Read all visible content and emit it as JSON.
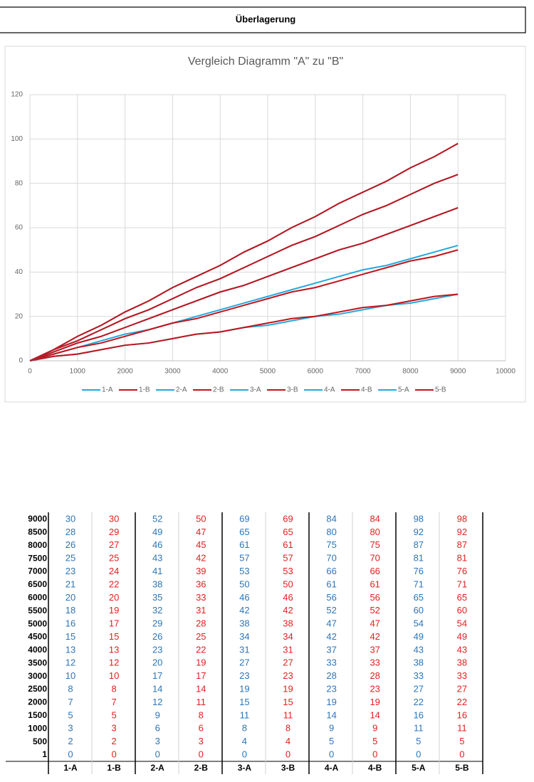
{
  "header": {
    "title": "Überlagerung"
  },
  "chart_data": {
    "type": "line",
    "title": "Vergleich Diagramm \"A\" zu \"B\"",
    "x": [
      1,
      500,
      1000,
      1500,
      2000,
      2500,
      3000,
      3500,
      4000,
      4500,
      5000,
      5500,
      6000,
      6500,
      7000,
      7500,
      8000,
      8500,
      9000
    ],
    "series": [
      {
        "name": "1-A",
        "color": "#25a9dd",
        "values": [
          0,
          2,
          3,
          5,
          7,
          8,
          10,
          12,
          13,
          15,
          16,
          18,
          20,
          21,
          23,
          25,
          26,
          28,
          30
        ]
      },
      {
        "name": "1-B",
        "color": "#c0141c",
        "values": [
          0,
          2,
          3,
          5,
          7,
          8,
          10,
          12,
          13,
          15,
          17,
          19,
          20,
          22,
          24,
          25,
          27,
          29,
          30
        ]
      },
      {
        "name": "2-A",
        "color": "#25a9dd",
        "values": [
          0,
          3,
          6,
          9,
          12,
          14,
          17,
          20,
          23,
          26,
          29,
          32,
          35,
          38,
          41,
          43,
          46,
          49,
          52
        ]
      },
      {
        "name": "2-B",
        "color": "#c0141c",
        "values": [
          0,
          3,
          6,
          8,
          11,
          14,
          17,
          19,
          22,
          25,
          28,
          31,
          33,
          36,
          39,
          42,
          45,
          47,
          50
        ]
      },
      {
        "name": "3-A",
        "color": "#25a9dd",
        "values": [
          0,
          4,
          8,
          11,
          15,
          19,
          23,
          27,
          31,
          34,
          38,
          42,
          46,
          50,
          53,
          57,
          61,
          65,
          69
        ]
      },
      {
        "name": "3-B",
        "color": "#c0141c",
        "values": [
          0,
          4,
          8,
          11,
          15,
          19,
          23,
          27,
          31,
          34,
          38,
          42,
          46,
          50,
          53,
          57,
          61,
          65,
          69
        ]
      },
      {
        "name": "4-A",
        "color": "#25a9dd",
        "values": [
          0,
          5,
          9,
          14,
          19,
          23,
          28,
          33,
          37,
          42,
          47,
          52,
          56,
          61,
          66,
          70,
          75,
          80,
          84
        ]
      },
      {
        "name": "4-B",
        "color": "#c0141c",
        "values": [
          0,
          5,
          9,
          14,
          19,
          23,
          28,
          33,
          37,
          42,
          47,
          52,
          56,
          61,
          66,
          70,
          75,
          80,
          84
        ]
      },
      {
        "name": "5-A",
        "color": "#25a9dd",
        "values": [
          0,
          5,
          11,
          16,
          22,
          27,
          33,
          38,
          43,
          49,
          54,
          60,
          65,
          71,
          76,
          81,
          87,
          92,
          98
        ]
      },
      {
        "name": "5-B",
        "color": "#c0141c",
        "values": [
          0,
          5,
          11,
          16,
          22,
          27,
          33,
          38,
          43,
          49,
          54,
          60,
          65,
          71,
          76,
          81,
          87,
          92,
          98
        ]
      }
    ],
    "xlim": [
      0,
      10000
    ],
    "xticks": [
      0,
      1000,
      2000,
      3000,
      4000,
      5000,
      6000,
      7000,
      8000,
      9000,
      10000
    ],
    "ylim": [
      0,
      120
    ],
    "yticks": [
      0,
      20,
      40,
      60,
      80,
      100,
      120
    ],
    "grid": true,
    "legend": "bottom"
  }
}
